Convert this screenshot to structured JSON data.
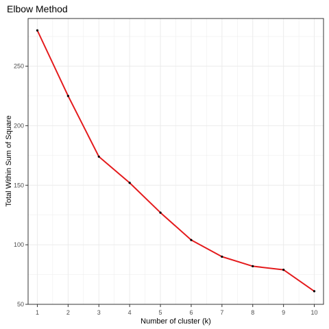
{
  "chart_data": {
    "type": "line",
    "title": "Elbow Method",
    "xlabel": "Number of cluster (k)",
    "ylabel": "Total Within Sum of Square",
    "x": [
      1,
      2,
      3,
      4,
      5,
      6,
      7,
      8,
      9,
      10
    ],
    "series": [
      {
        "values": [
          280,
          225,
          174,
          152,
          127,
          104,
          90,
          82,
          79,
          61
        ]
      }
    ],
    "xlim": [
      0.7,
      10.3
    ],
    "ylim": [
      50,
      290
    ],
    "x_ticks": [
      "1",
      "2",
      "3",
      "4",
      "5",
      "6",
      "7",
      "8",
      "9",
      "10"
    ],
    "y_ticks": [
      50,
      100,
      150,
      200,
      250
    ],
    "grid": true,
    "colors": {
      "line": "#e41a1c",
      "points": "#000000",
      "grid": "#ebebeb",
      "border": "#333333"
    }
  }
}
